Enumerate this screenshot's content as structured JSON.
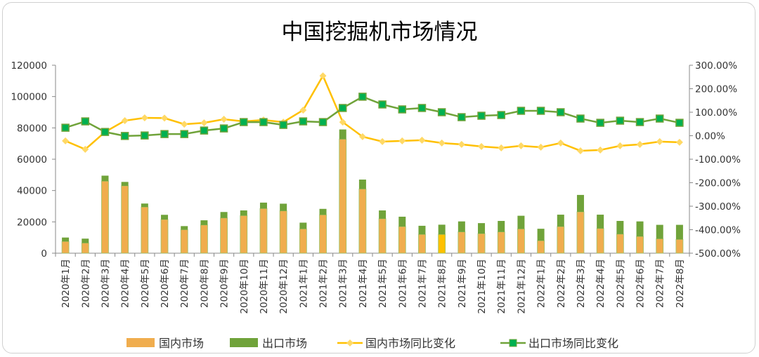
{
  "chart_data": {
    "type": "bar+line",
    "title": "中国挖掘机市场情况",
    "categories": [
      "2020年1月",
      "2020年2月",
      "2020年3月",
      "2020年4月",
      "2020年5月",
      "2020年6月",
      "2020年7月",
      "2020年8月",
      "2020年9月",
      "2020年10月",
      "2020年11月",
      "2020年12月",
      "2021年1月",
      "2021年2月",
      "2021年3月",
      "2021年4月",
      "2021年5月",
      "2021年6月",
      "2021年7月",
      "2021年8月",
      "2021年9月",
      "2021年10月",
      "2021年11月",
      "2021年12月",
      "2022年1月",
      "2022年2月",
      "2022年3月",
      "2022年4月",
      "2022年5月",
      "2022年6月",
      "2022年7月",
      "2022年8月"
    ],
    "left_axis": {
      "ylim": [
        0,
        120000
      ],
      "ticks": [
        "0",
        "20000",
        "40000",
        "60000",
        "80000",
        "100000",
        "120000"
      ]
    },
    "right_axis": {
      "ylim": [
        -500,
        300
      ],
      "ticks": [
        "-500.00%",
        "-400.00%",
        "-300.00%",
        "-200.00%",
        "-100.00%",
        "0.00%",
        "100.00%",
        "200.00%",
        "300.00%"
      ]
    },
    "series": [
      {
        "name": "国内市场",
        "kind": "stacked-bar",
        "axis": "left",
        "color": "#F0AD4E",
        "highlight_color": "#FFC000",
        "highlight_index": 19,
        "values": [
          7500,
          6500,
          46000,
          43000,
          29500,
          21500,
          15000,
          18000,
          22500,
          24000,
          28500,
          27000,
          15500,
          24500,
          72800,
          41000,
          22000,
          17000,
          12000,
          12000,
          13600,
          12500,
          13600,
          15500,
          8000,
          17000,
          26400,
          15800,
          12200,
          10700,
          9200,
          8800
        ]
      },
      {
        "name": "出口市场",
        "kind": "stacked-bar",
        "axis": "left",
        "color": "#70A33A",
        "values": [
          2500,
          2800,
          3500,
          2500,
          2200,
          3000,
          2300,
          3000,
          3800,
          3300,
          3800,
          4600,
          4000,
          3800,
          6200,
          6000,
          5300,
          6300,
          5500,
          6200,
          6700,
          6700,
          7000,
          8400,
          7600,
          7600,
          10800,
          8800,
          8400,
          9600,
          8900,
          9300
        ]
      },
      {
        "name": "国内市场同比变化",
        "kind": "line",
        "axis": "right",
        "unit": "%",
        "color": "#FFC000",
        "marker": "diamond",
        "marker_color": "#FFD966",
        "values": [
          -22,
          -58,
          16,
          64,
          76,
          75,
          49,
          55,
          70,
          61,
          67,
          58,
          109,
          255,
          58,
          -4,
          -25,
          -22,
          -19,
          -31,
          -37,
          -46,
          -52,
          -43,
          -49,
          -31,
          -64,
          -61,
          -43,
          -37,
          -25,
          -28
        ]
      },
      {
        "name": "出口市场同比变化",
        "kind": "line",
        "axis": "right",
        "unit": "%",
        "color": "#70A33A",
        "marker": "square",
        "marker_color": "#00B050",
        "values": [
          34,
          61,
          16,
          -1,
          1,
          7,
          7,
          22,
          31,
          58,
          58,
          46,
          61,
          58,
          118,
          166,
          133,
          112,
          118,
          100,
          79,
          85,
          88,
          106,
          106,
          100,
          73,
          55,
          64,
          58,
          73,
          55
        ]
      }
    ],
    "legend": "bottom",
    "grid": false
  }
}
